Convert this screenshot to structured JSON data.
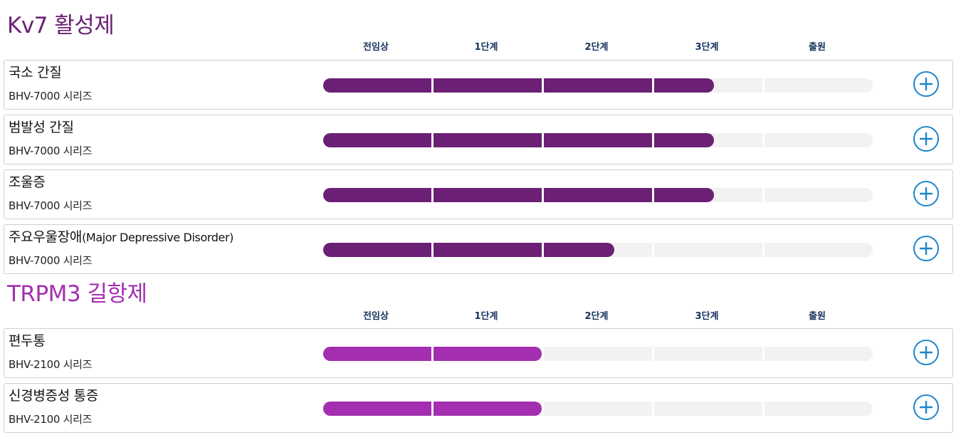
{
  "stages": [
    "전임상",
    "1단계",
    "2단계",
    "3단계",
    "출원"
  ],
  "colors": {
    "kv7": "#6b2075",
    "trpm3": "#a32eb0",
    "stage_label": "#15325c",
    "track_empty": "#f2f2f2",
    "button": "#1a86c8"
  },
  "icons": {
    "expand": "plus-icon"
  },
  "sections": [
    {
      "title": "Kv7 활성제",
      "accent": "#6b2075",
      "rows": [
        {
          "name": "국소 간질",
          "series": "BHV-7000 시리즈",
          "progress_stages": 3.55
        },
        {
          "name": "범발성 간질",
          "series": "BHV-7000 시리즈",
          "progress_stages": 3.55
        },
        {
          "name": "조울증",
          "series": "BHV-7000 시리즈",
          "progress_stages": 3.55
        },
        {
          "name": "주요우울장애",
          "name_en": "(Major Depressive Disorder)",
          "series": "BHV-7000 시리즈",
          "progress_stages": 2.65
        }
      ]
    },
    {
      "title": "TRPM3 길항제",
      "accent": "#a32eb0",
      "rows": [
        {
          "name": "편두통",
          "series": "BHV-2100 시리즈",
          "progress_stages": 2.0
        },
        {
          "name": "신경병증성 통증",
          "series": "BHV-2100 시리즈",
          "progress_stages": 2.0
        }
      ]
    }
  ]
}
